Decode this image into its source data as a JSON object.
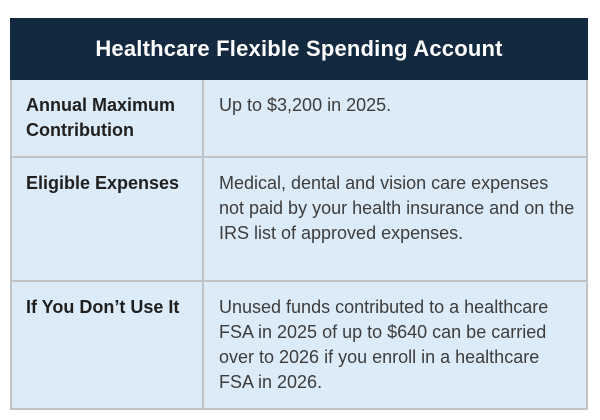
{
  "table": {
    "title": "Healthcare Flexible Spending Account",
    "rows": [
      {
        "label": "Annual Maximum Contribution",
        "value": "Up to $3,200 in 2025."
      },
      {
        "label": "Eligible Expenses",
        "value": "Medical, dental and vision care expenses not paid by your health insurance and on the IRS list of approved expenses."
      },
      {
        "label": "If You Don’t Use It",
        "value": "Unused funds contributed to a healthcare FSA in 2025 of up to $640 can be carried over to 2026 if you enroll in a healthcare FSA in 2026."
      }
    ]
  },
  "colors": {
    "header_bg": "#132940",
    "header_text": "#ffffff",
    "cell_bg": "#dcebf8",
    "border": "#c0c4c6",
    "label_text": "#1f1f1f",
    "body_text": "#3d3d3d",
    "page_bg": "#ffffff"
  }
}
